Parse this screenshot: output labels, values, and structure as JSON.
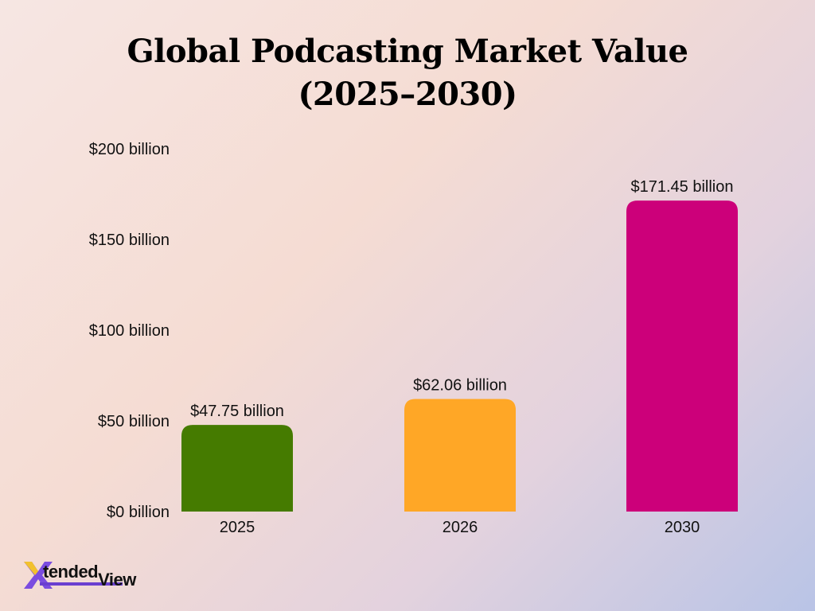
{
  "title_line1": "Global Podcasting Market Value",
  "title_line2": "(2025–2030)",
  "logo": {
    "text_main": "tended",
    "text_view": "View",
    "accent": "#7b4ce0"
  },
  "chart_data": {
    "type": "bar",
    "title": "Global Podcasting Market Value (2025–2030)",
    "categories": [
      "2025",
      "2026",
      "2030"
    ],
    "values": [
      47.75,
      62.06,
      171.45
    ],
    "data_labels": [
      "$47.75 billion",
      "$62.06 billion",
      "$171.45 billion"
    ],
    "colors": [
      "#457b00",
      "#ffa726",
      "#cc007a"
    ],
    "yticks": [
      0,
      50,
      100,
      150,
      200
    ],
    "ytick_labels": [
      "$0 billion",
      "$50 billion",
      "$100 billion",
      "$150 billion",
      "$200 billion"
    ],
    "ylim": [
      0,
      200
    ],
    "grid": false,
    "legend": "none"
  }
}
